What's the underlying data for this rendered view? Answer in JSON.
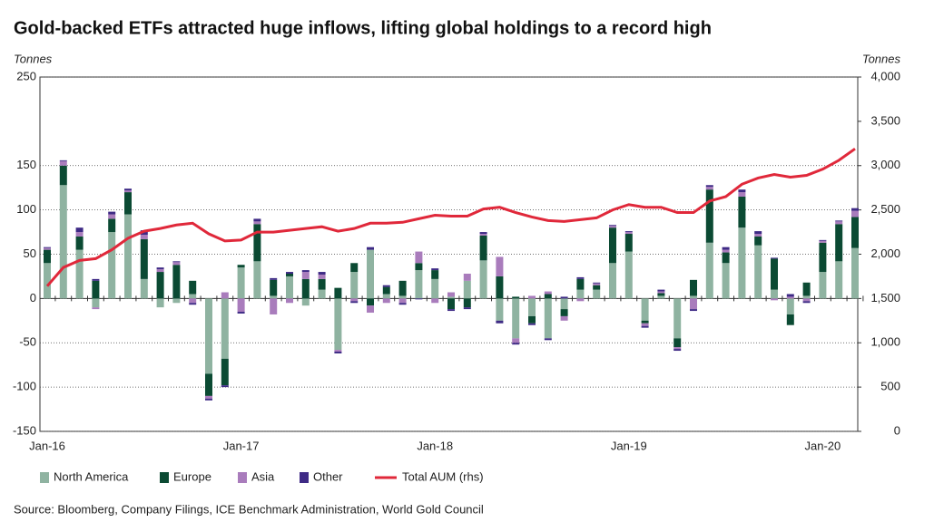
{
  "chart_data": {
    "type": "bar",
    "title": "Gold-backed ETFs attracted huge inflows, lifting global holdings to a record high",
    "y_label": "Tonnes",
    "y2_label": "Tonnes",
    "source": "Source: Bloomberg, Company Filings, ICE Benchmark Administration, World Gold Council",
    "categories": [
      "Jan-16",
      null,
      null,
      null,
      null,
      null,
      null,
      null,
      null,
      null,
      null,
      null,
      "Jan-17",
      null,
      null,
      null,
      null,
      null,
      null,
      null,
      null,
      null,
      null,
      null,
      "Jan-18",
      null,
      null,
      null,
      null,
      null,
      null,
      null,
      null,
      null,
      null,
      null,
      "Jan-19",
      null,
      null,
      null,
      null,
      null,
      null,
      null,
      null,
      null,
      null,
      null,
      "Jan-20",
      null,
      null
    ],
    "series": [
      {
        "name": "North America",
        "color": "#8fb3a1",
        "values": [
          40,
          128,
          55,
          -10,
          75,
          95,
          22,
          -10,
          -5,
          5,
          -85,
          -68,
          35,
          42,
          3,
          25,
          -8,
          10,
          -58,
          30,
          55,
          5,
          3,
          32,
          22,
          2,
          20,
          43,
          -25,
          -45,
          -20,
          -45,
          -12,
          10,
          10,
          40,
          53,
          -25,
          3,
          -45,
          3,
          63,
          40,
          80,
          60,
          10,
          -18,
          3,
          30,
          42,
          57
        ]
      },
      {
        "name": "Europe",
        "color": "#0b4a33",
        "values": [
          15,
          22,
          15,
          20,
          15,
          25,
          45,
          30,
          38,
          15,
          -25,
          -30,
          3,
          42,
          18,
          3,
          22,
          12,
          12,
          10,
          -8,
          8,
          17,
          8,
          10,
          -12,
          -10,
          28,
          25,
          2,
          -8,
          5,
          -8,
          12,
          5,
          40,
          20,
          -3,
          3,
          -10,
          18,
          60,
          12,
          35,
          10,
          35,
          -12,
          15,
          33,
          42,
          35
        ]
      },
      {
        "name": "Asia",
        "color": "#a97cbc",
        "values": [
          2,
          5,
          5,
          -2,
          5,
          2,
          5,
          3,
          3,
          -5,
          -3,
          7,
          -15,
          3,
          -18,
          -5,
          8,
          5,
          -2,
          -3,
          -8,
          -5,
          -5,
          13,
          -5,
          5,
          8,
          2,
          22,
          -5,
          3,
          3,
          -5,
          -3,
          2,
          2,
          2,
          -3,
          2,
          -2,
          -12,
          3,
          3,
          5,
          3,
          -2,
          2,
          -3,
          2,
          3,
          7
        ]
      },
      {
        "name": "Other",
        "color": "#3e2a85",
        "values": [
          1,
          1,
          5,
          2,
          3,
          2,
          5,
          2,
          1,
          -2,
          -2,
          -2,
          -2,
          3,
          2,
          2,
          2,
          3,
          -2,
          -2,
          3,
          2,
          -2,
          -1,
          2,
          -2,
          -2,
          2,
          -3,
          -2,
          -2,
          -2,
          2,
          2,
          1,
          1,
          1,
          -2,
          2,
          -2,
          -2,
          2,
          3,
          3,
          3,
          1,
          3,
          -2,
          1,
          1,
          3
        ]
      },
      {
        "name": "Total AUM (rhs)",
        "type": "line",
        "axis": "y2",
        "color": "#e0283a",
        "values": [
          1640,
          1850,
          1930,
          1950,
          2050,
          2180,
          2260,
          2290,
          2330,
          2350,
          2230,
          2150,
          2160,
          2250,
          2250,
          2270,
          2290,
          2310,
          2260,
          2290,
          2350,
          2350,
          2360,
          2400,
          2440,
          2430,
          2430,
          2510,
          2530,
          2470,
          2420,
          2380,
          2370,
          2390,
          2410,
          2500,
          2560,
          2530,
          2530,
          2470,
          2470,
          2600,
          2650,
          2790,
          2860,
          2900,
          2870,
          2890,
          2960,
          3060,
          3190
        ]
      }
    ],
    "ylim": [
      -150,
      250
    ],
    "yticks": [
      -150,
      -100,
      -50,
      0,
      50,
      100,
      150,
      250
    ],
    "y2lim": [
      0,
      4000
    ],
    "y2ticks": [
      0,
      500,
      {
        "value": 1000,
        "label": "1,000"
      },
      {
        "value": 1500,
        "label": "1,500"
      },
      {
        "value": 2000,
        "label": "2,000"
      },
      {
        "value": 2500,
        "label": "2,500"
      },
      {
        "value": 3000,
        "label": "3,000"
      },
      {
        "value": 3500,
        "label": "3,500"
      },
      {
        "value": 4000,
        "label": "4,000"
      }
    ],
    "grid": true
  }
}
